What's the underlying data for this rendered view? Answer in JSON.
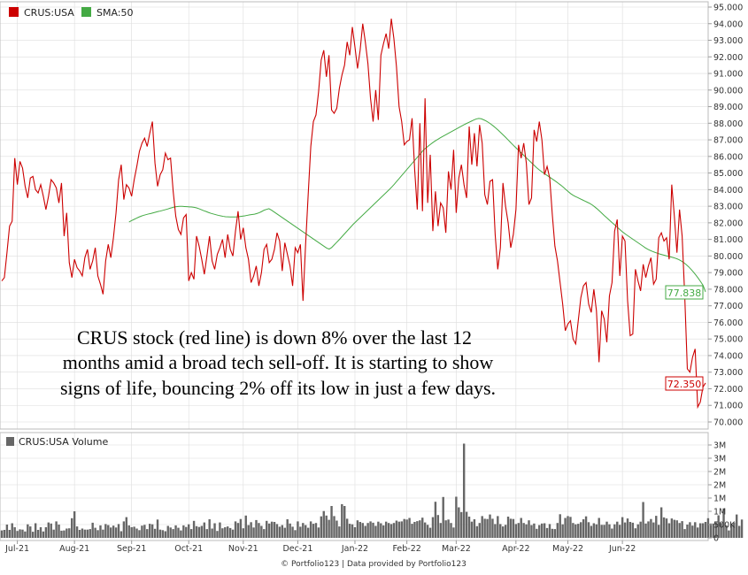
{
  "legend": {
    "price_label": "CRUS:USA",
    "sma_label": "SMA:50",
    "volume_label": "CRUS:USA Volume"
  },
  "annotation": {
    "lines": [
      "CRUS stock (red line) is down 8% over the last 12",
      "months amid a broad tech sell-off. It is starting to show",
      "signs of life, bouncing 2% off its low in just a few days."
    ]
  },
  "footer": "© Portfolio123 | Data provided by Portfolio123",
  "last_values": {
    "price": "72.350",
    "sma": "77.838"
  },
  "colors": {
    "price": "#cc0000",
    "sma": "#44aa44",
    "volume": "#666666",
    "grid": "#dddddd"
  },
  "chart_data": [
    {
      "type": "line",
      "title": "",
      "series": [
        {
          "name": "CRUS:USA",
          "values": [
            78.5,
            78.7,
            80.2,
            81.8,
            82.1,
            85.9,
            84.3,
            85.7,
            85.3,
            84.2,
            83.5,
            84.7,
            84.8,
            84.0,
            83.8,
            84.3,
            83.6,
            82.8,
            83.6,
            84.6,
            84.4,
            84.1,
            83.2,
            84.4,
            81.2,
            82.6,
            79.6,
            78.7,
            79.8,
            79.3,
            79.1,
            78.8,
            79.9,
            80.4,
            79.2,
            79.7,
            80.5,
            78.8,
            78.3,
            77.7,
            79.7,
            80.7,
            79.9,
            81.1,
            82.6,
            84.6,
            85.5,
            83.4,
            84.3,
            84.1,
            83.6,
            84.6,
            85.4,
            86.3,
            86.8,
            87.1,
            86.6,
            87.4,
            88.1,
            85.6,
            84.2,
            84.9,
            85.2,
            86.2,
            85.8,
            85.9,
            83.9,
            82.4,
            81.6,
            81.3,
            82.3,
            82.5,
            78.5,
            79.0,
            78.6,
            81.2,
            80.6,
            79.8,
            78.9,
            80.0,
            81.2,
            79.7,
            79.2,
            80.1,
            80.5,
            81.0,
            79.9,
            81.3,
            80.4,
            80.0,
            81.5,
            82.7,
            81.0,
            81.7,
            80.5,
            79.8,
            78.4,
            78.8,
            79.4,
            78.2,
            79.0,
            80.4,
            80.7,
            79.6,
            79.8,
            80.4,
            81.4,
            80.9,
            79.1,
            80.8,
            80.1,
            79.4,
            78.2,
            80.5,
            80.2,
            80.7,
            77.3,
            80.7,
            83.7,
            86.6,
            88.1,
            88.5,
            89.9,
            91.8,
            92.4,
            90.8,
            92.1,
            88.8,
            88.6,
            88.9,
            90.1,
            90.9,
            91.5,
            92.9,
            92.1,
            93.8,
            92.6,
            91.3,
            92.4,
            94.0,
            92.9,
            91.6,
            89.5,
            88.1,
            90.0,
            88.2,
            92.1,
            92.8,
            93.4,
            92.5,
            94.3,
            93.1,
            91.4,
            89.0,
            88.1,
            86.7,
            86.9,
            87.0,
            88.3,
            85.2,
            82.8,
            88.0,
            82.7,
            89.5,
            83.2,
            86.1,
            81.5,
            83.9,
            81.8,
            83.2,
            82.9,
            81.4,
            85.1,
            84.0,
            86.4,
            82.6,
            84.7,
            85.5,
            84.3,
            83.5,
            87.8,
            85.5,
            87.4,
            85.4,
            87.9,
            86.8,
            83.7,
            83.1,
            84.5,
            84.6,
            81.3,
            79.2,
            80.5,
            84.4,
            83.0,
            82.0,
            80.5,
            81.3,
            82.8,
            86.7,
            85.9,
            86.8,
            85.6,
            83.1,
            83.5,
            87.6,
            86.9,
            88.1,
            87.0,
            84.9,
            85.4,
            84.7,
            82.5,
            80.6,
            79.7,
            78.4,
            77.1,
            75.5,
            75.9,
            76.1,
            75.0,
            74.7,
            76.1,
            77.5,
            78.2,
            78.4,
            77.1,
            76.6,
            78.0,
            76.7,
            73.6,
            76.7,
            76.2,
            74.8,
            77.6,
            78.4,
            81.5,
            82.2,
            78.8,
            81.2,
            80.9,
            77.3,
            75.2,
            75.3,
            79.2,
            78.5,
            77.9,
            79.5,
            78.7,
            79.4,
            79.9,
            78.3,
            78.6,
            81.1,
            81.4,
            80.9,
            81.1,
            79.8,
            84.3,
            82.4,
            80.2,
            82.8,
            81.2,
            77.6,
            73.2,
            73.0,
            73.9,
            74.4,
            70.9,
            71.2,
            72.1,
            72.35
          ]
        },
        {
          "name": "SMA:50",
          "start_index": 49,
          "values": [
            82.05,
            82.13,
            82.2,
            82.27,
            82.34,
            82.4,
            82.45,
            82.49,
            82.53,
            82.56,
            82.6,
            82.64,
            82.68,
            82.71,
            82.75,
            82.79,
            82.83,
            82.88,
            82.92,
            82.96,
            82.98,
            82.99,
            82.99,
            82.98,
            82.97,
            82.96,
            82.95,
            82.93,
            82.9,
            82.85,
            82.79,
            82.73,
            82.68,
            82.62,
            82.57,
            82.53,
            82.49,
            82.45,
            82.42,
            82.39,
            82.37,
            82.36,
            82.35,
            82.35,
            82.35,
            82.36,
            82.38,
            82.4,
            82.42,
            82.45,
            82.48,
            82.5,
            82.52,
            82.56,
            82.61,
            82.68,
            82.76,
            82.81,
            82.85,
            82.77,
            82.67,
            82.57,
            82.47,
            82.37,
            82.27,
            82.17,
            82.07,
            81.97,
            81.87,
            81.77,
            81.67,
            81.57,
            81.47,
            81.37,
            81.27,
            81.17,
            81.07,
            80.97,
            80.87,
            80.77,
            80.67,
            80.57,
            80.47,
            80.42,
            80.51,
            80.66,
            80.81,
            80.96,
            81.12,
            81.28,
            81.44,
            81.6,
            81.76,
            81.92,
            82.06,
            82.2,
            82.34,
            82.48,
            82.62,
            82.76,
            82.9,
            83.04,
            83.18,
            83.32,
            83.46,
            83.6,
            83.74,
            83.88,
            84.02,
            84.17,
            84.33,
            84.5,
            84.67,
            84.84,
            85.01,
            85.18,
            85.35,
            85.52,
            85.69,
            85.86,
            86.03,
            86.2,
            86.37,
            86.5,
            86.62,
            86.73,
            86.84,
            86.94,
            87.03,
            87.12,
            87.2,
            87.28,
            87.36,
            87.44,
            87.52,
            87.6,
            87.68,
            87.76,
            87.84,
            87.92,
            87.99,
            88.06,
            88.13,
            88.2,
            88.26,
            88.29,
            88.27,
            88.21,
            88.14,
            88.05,
            87.95,
            87.84,
            87.72,
            87.59,
            87.45,
            87.31,
            87.17,
            87.02,
            86.87,
            86.72,
            86.58,
            86.44,
            86.3,
            86.16,
            86.02,
            85.88,
            85.74,
            85.6,
            85.46,
            85.32,
            85.2,
            85.09,
            84.99,
            84.89,
            84.79,
            84.69,
            84.59,
            84.49,
            84.38,
            84.27,
            84.15,
            84.02,
            83.89,
            83.77,
            83.67,
            83.59,
            83.52,
            83.45,
            83.38,
            83.31,
            83.24,
            83.17,
            83.08,
            82.97,
            82.85,
            82.72,
            82.58,
            82.44,
            82.31,
            82.18,
            82.05,
            81.92,
            81.79,
            81.66,
            81.53,
            81.41,
            81.3,
            81.2,
            81.1,
            81.0,
            80.9,
            80.8,
            80.7,
            80.6,
            80.5,
            80.41,
            80.34,
            80.28,
            80.22,
            80.17,
            80.12,
            80.08,
            80.04,
            80.0,
            79.97,
            79.93,
            79.89,
            79.84,
            79.78,
            79.7,
            79.6,
            79.48,
            79.35,
            79.2,
            79.03,
            78.85,
            78.66,
            78.45,
            78.23,
            77.838
          ]
        }
      ],
      "x_tick_labels": [
        "Jul-21",
        "Aug-21",
        "Sep-21",
        "Oct-21",
        "Nov-21",
        "Dec-21",
        "Jan-22",
        "Feb-22",
        "Mar-22",
        "Apr-22",
        "May-22",
        "Jun-22"
      ],
      "y_tick_labels": [
        "70.000",
        "71.000",
        "72.000",
        "73.000",
        "74.000",
        "75.000",
        "76.000",
        "77.000",
        "78.000",
        "79.000",
        "80.000",
        "81.000",
        "82.000",
        "83.000",
        "84.000",
        "85.000",
        "86.000",
        "87.000",
        "88.000",
        "89.000",
        "90.000",
        "91.000",
        "92.000",
        "93.000",
        "94.000",
        "95.000"
      ],
      "ylim": [
        70,
        95
      ],
      "grid": true,
      "legend_position": "top-left"
    },
    {
      "type": "bar",
      "title": "",
      "series": [
        {
          "name": "CRUS:USA Volume",
          "values": [
            0.28,
            0.3,
            0.5,
            0.3,
            0.55,
            0.4,
            0.26,
            0.32,
            0.31,
            0.24,
            0.51,
            0.43,
            0.23,
            0.55,
            0.3,
            0.4,
            0.24,
            0.4,
            0.58,
            0.54,
            0.31,
            0.62,
            0.5,
            0.27,
            0.28,
            0.35,
            0.36,
            0.74,
            1.0,
            0.43,
            0.3,
            0.35,
            0.31,
            0.31,
            0.33,
            0.57,
            0.38,
            0.29,
            0.47,
            0.31,
            0.52,
            0.48,
            0.39,
            0.46,
            0.39,
            0.52,
            0.25,
            0.62,
            0.78,
            0.47,
            0.4,
            0.42,
            0.35,
            0.29,
            0.46,
            0.49,
            0.33,
            0.53,
            0.51,
            0.34,
            0.69,
            0.31,
            0.29,
            0.25,
            0.45,
            0.39,
            0.33,
            0.47,
            0.38,
            0.28,
            0.47,
            0.41,
            0.51,
            0.33,
            0.64,
            0.44,
            0.41,
            0.45,
            0.58,
            0.33,
            0.7,
            0.35,
            0.55,
            0.26,
            0.58,
            0.36,
            0.4,
            0.43,
            0.37,
            0.31,
            0.62,
            0.56,
            0.71,
            0.36,
            0.84,
            0.48,
            0.59,
            0.39,
            0.67,
            0.56,
            0.45,
            0.33,
            0.64,
            0.54,
            0.61,
            0.6,
            0.52,
            0.42,
            0.48,
            0.38,
            0.7,
            0.54,
            0.42,
            0.29,
            0.62,
            0.42,
            0.56,
            0.48,
            0.38,
            0.62,
            0.53,
            0.56,
            0.39,
            0.81,
            1.01,
            0.84,
            0.68,
            1.2,
            0.82,
            0.65,
            0.43,
            1.27,
            1.2,
            0.72,
            0.53,
            0.51,
            0.4,
            0.66,
            0.6,
            0.56,
            0.45,
            0.56,
            0.62,
            0.57,
            0.45,
            0.61,
            0.55,
            0.47,
            0.61,
            0.56,
            0.52,
            0.56,
            0.65,
            0.61,
            0.62,
            0.71,
            0.69,
            0.75,
            0.53,
            0.6,
            0.63,
            0.66,
            0.76,
            0.58,
            0.49,
            0.38,
            0.78,
            1.36,
            0.86,
            0.56,
            1.54,
            0.66,
            0.69,
            0.56,
            0.39,
            1.55,
            1.15,
            0.97,
            3.55,
            0.98,
            0.8,
            0.61,
            0.7,
            0.44,
            0.56,
            0.82,
            0.72,
            0.71,
            0.88,
            0.72,
            0.52,
            0.82,
            0.52,
            0.43,
            0.49,
            0.8,
            0.72,
            0.71,
            0.52,
            0.56,
            0.75,
            0.56,
            0.51,
            0.66,
            0.48,
            0.54,
            0.34,
            0.48,
            0.54,
            0.55,
            0.37,
            0.52,
            0.34,
            0.33,
            0.56,
            0.89,
            0.51,
            0.75,
            0.82,
            0.79,
            0.56,
            0.51,
            0.53,
            0.59,
            0.7,
            0.81,
            0.59,
            0.45,
            0.55,
            0.51,
            0.75,
            0.49,
            0.49,
            0.61,
            0.51,
            0.35,
            0.51,
            0.61,
            0.49,
            0.78,
            0.58,
            0.73,
            0.6,
            0.57,
            0.36,
            0.51,
            0.61,
            1.35,
            0.54,
            0.62,
            0.71,
            0.58,
            0.83,
            0.49,
            1.15,
            0.77,
            0.73,
            0.55,
            0.73,
            0.68,
            0.66,
            0.56,
            0.63,
            0.33,
            0.5,
            0.59,
            0.46,
            0.59,
            0.39,
            0.55,
            0.55,
            0.6,
            0.74,
            0.54,
            0.54,
            0.58,
            0.85,
            0.56,
            1.11,
            0.47,
            0.28,
            0.54,
            0.58,
            0.88,
            0.45,
            0.69
          ]
        }
      ],
      "y_tick_labels": [
        "0",
        "500K",
        "1M",
        "1M",
        "2M",
        "2M",
        "3M",
        "3M"
      ],
      "ylim": [
        0,
        3.7
      ],
      "y_unit": "M",
      "grid": true,
      "legend_position": "top-left"
    }
  ]
}
